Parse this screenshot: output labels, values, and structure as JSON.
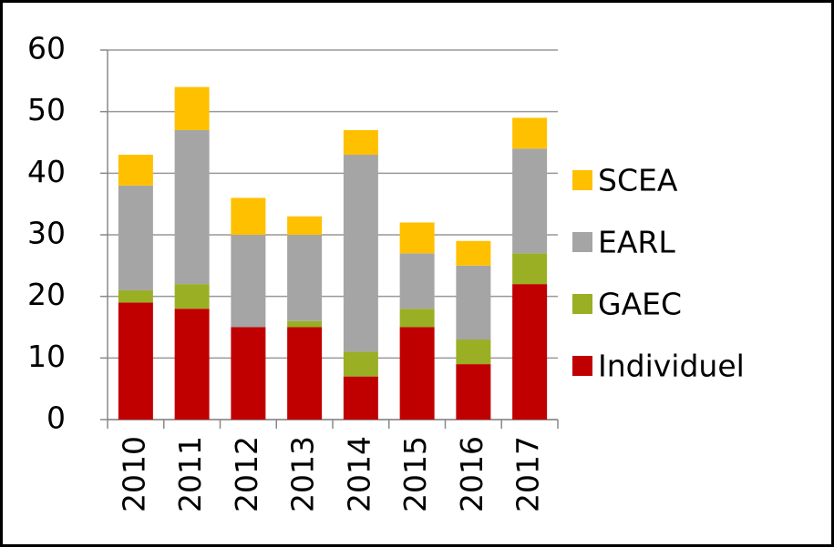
{
  "chart_data": {
    "type": "bar",
    "stacked": true,
    "categories": [
      "2010",
      "2011",
      "2012",
      "2013",
      "2014",
      "2015",
      "2016",
      "2017"
    ],
    "series": [
      {
        "name": "Individuel",
        "color": "#c00000",
        "values": [
          19,
          18,
          15,
          15,
          7,
          15,
          9,
          22
        ]
      },
      {
        "name": "GAEC",
        "color": "#9aaf24",
        "values": [
          2,
          4,
          0,
          1,
          4,
          3,
          4,
          5
        ]
      },
      {
        "name": "EARL",
        "color": "#a5a5a5",
        "values": [
          17,
          25,
          15,
          14,
          32,
          9,
          12,
          17
        ]
      },
      {
        "name": "SCEA",
        "color": "#ffc000",
        "values": [
          5,
          7,
          6,
          3,
          4,
          5,
          4,
          5
        ]
      }
    ],
    "ylim": [
      0,
      60
    ],
    "yticks": [
      0,
      10,
      20,
      30,
      40,
      50,
      60
    ],
    "grid": true,
    "legend": "right"
  }
}
